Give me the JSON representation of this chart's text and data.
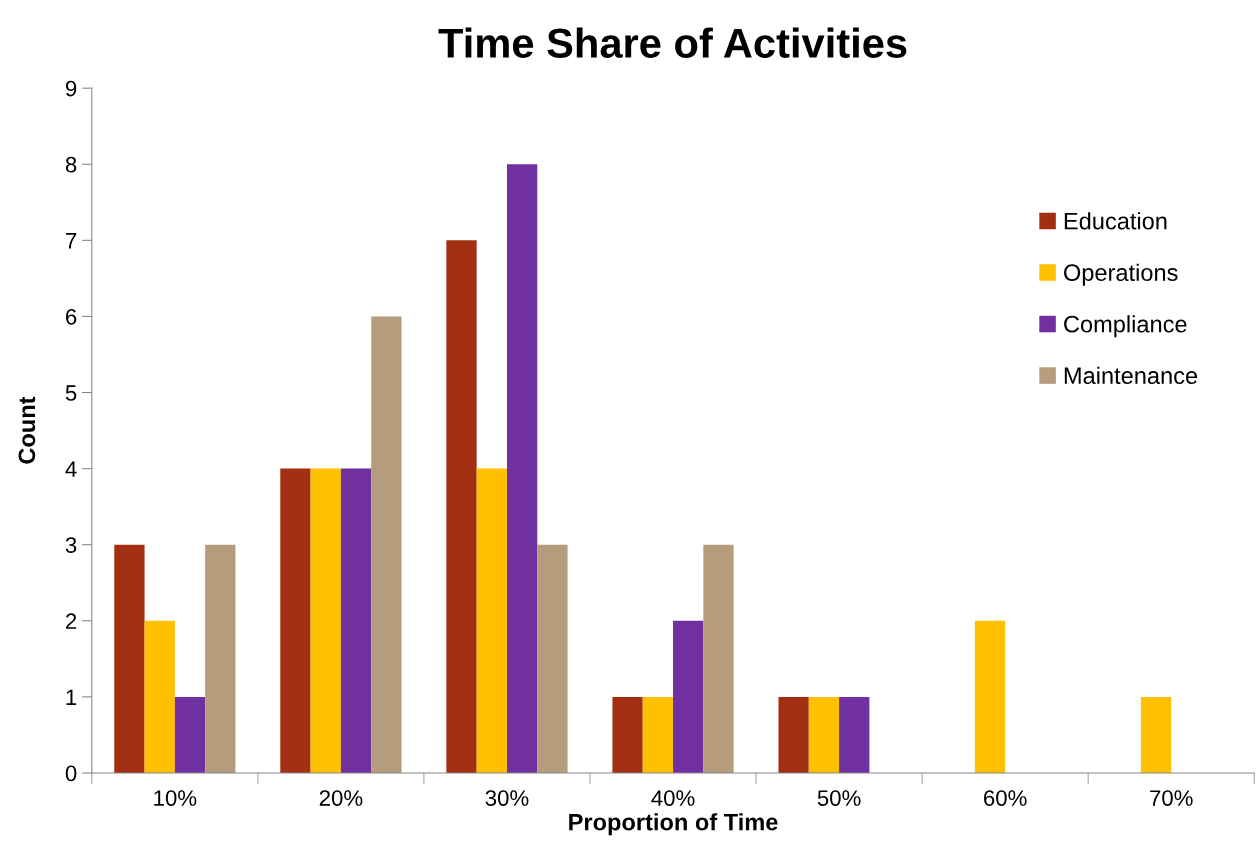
{
  "chart_data": {
    "type": "bar",
    "title": "Time Share of Activities",
    "xlabel": "Proportion of Time",
    "ylabel": "Count",
    "categories": [
      "10%",
      "20%",
      "30%",
      "40%",
      "50%",
      "60%",
      "70%"
    ],
    "series": [
      {
        "name": "Education",
        "color": "#a32f12",
        "values": [
          3,
          4,
          7,
          1,
          1,
          0,
          0
        ]
      },
      {
        "name": "Operations",
        "color": "#ffc000",
        "values": [
          2,
          4,
          4,
          1,
          1,
          2,
          1
        ]
      },
      {
        "name": "Compliance",
        "color": "#7030a0",
        "values": [
          1,
          4,
          8,
          2,
          1,
          0,
          0
        ]
      },
      {
        "name": "Maintenance",
        "color": "#b49c7c",
        "values": [
          3,
          6,
          3,
          3,
          0,
          0,
          0
        ]
      }
    ],
    "ylim": [
      0,
      9
    ],
    "yticks": [
      0,
      1,
      2,
      3,
      4,
      5,
      6,
      7,
      8,
      9
    ],
    "grid": false,
    "legend": "top right"
  }
}
